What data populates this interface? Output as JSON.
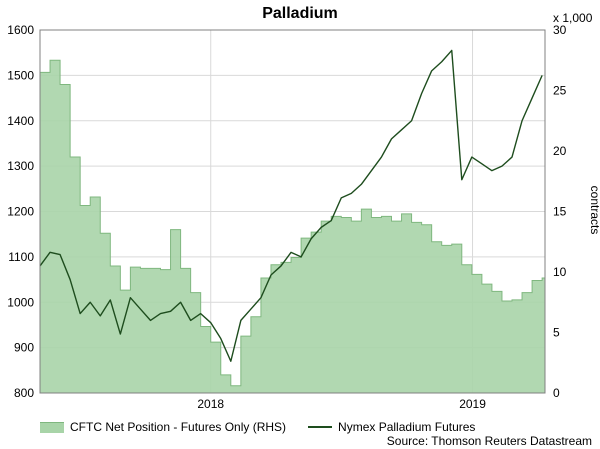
{
  "chart_data": {
    "type": "line",
    "title": "Palladium",
    "left_axis": {
      "ylim": [
        800,
        1600
      ],
      "ticks": [
        800,
        900,
        1000,
        1100,
        1200,
        1300,
        1400,
        1500,
        1600
      ]
    },
    "right_axis": {
      "ylim": [
        0,
        30
      ],
      "ticks": [
        0,
        5,
        10,
        15,
        20,
        25,
        30
      ],
      "unit_label": "x 1,000",
      "ylabel": "contracts"
    },
    "x_axis": {
      "xlim": [
        "2017-05-08",
        "2019-04-12"
      ],
      "tick_labels": [
        {
          "label": "2018",
          "date": "2018-01-01"
        },
        {
          "label": "2019",
          "date": "2019-01-01"
        }
      ]
    },
    "grid": true,
    "legend_position": "bottom",
    "series": [
      {
        "name": "CFTC Net Position - Futures Only (RHS)",
        "type": "area",
        "axis": "right",
        "color": "#a8d4a8",
        "x": [
          "2017-05-08",
          "2017-05-22",
          "2017-06-05",
          "2017-06-19",
          "2017-07-03",
          "2017-07-17",
          "2017-07-31",
          "2017-08-14",
          "2017-08-28",
          "2017-09-11",
          "2017-09-25",
          "2017-10-09",
          "2017-10-23",
          "2017-11-06",
          "2017-11-20",
          "2017-12-04",
          "2017-12-18",
          "2018-01-01",
          "2018-01-15",
          "2018-01-29",
          "2018-02-12",
          "2018-02-26",
          "2018-03-12",
          "2018-03-26",
          "2018-04-09",
          "2018-04-23",
          "2018-05-07",
          "2018-05-21",
          "2018-06-04",
          "2018-06-18",
          "2018-07-02",
          "2018-07-16",
          "2018-07-30",
          "2018-08-13",
          "2018-08-27",
          "2018-09-10",
          "2018-09-24",
          "2018-10-08",
          "2018-10-22",
          "2018-11-05",
          "2018-11-19",
          "2018-12-03",
          "2018-12-17",
          "2018-12-31",
          "2019-01-14",
          "2019-01-28",
          "2019-02-11",
          "2019-02-25",
          "2019-03-11",
          "2019-03-25",
          "2019-04-08"
        ],
        "values": [
          26.5,
          27.5,
          25.5,
          19.5,
          15.5,
          16.2,
          13.2,
          10.5,
          8.5,
          10.4,
          10.3,
          10.3,
          10.2,
          13.5,
          10.3,
          8.3,
          5.5,
          4.2,
          1.5,
          0.6,
          4.7,
          6.3,
          9.5,
          10.6,
          10.8,
          11.2,
          12.8,
          13.3,
          14.2,
          14.6,
          14.5,
          14.2,
          15.2,
          14.5,
          14.6,
          14.2,
          14.8,
          14.1,
          13.9,
          12.5,
          12.2,
          12.3,
          10.6,
          9.8,
          9.0,
          8.4,
          7.6,
          7.7,
          8.3,
          9.3,
          9.5
        ]
      },
      {
        "name": "Nymex Palladium Futures",
        "type": "line",
        "axis": "left",
        "color": "#1e4d1e",
        "x": [
          "2017-05-08",
          "2017-05-22",
          "2017-06-05",
          "2017-06-19",
          "2017-07-03",
          "2017-07-17",
          "2017-07-31",
          "2017-08-14",
          "2017-08-28",
          "2017-09-11",
          "2017-09-25",
          "2017-10-09",
          "2017-10-23",
          "2017-11-06",
          "2017-11-20",
          "2017-12-04",
          "2017-12-18",
          "2018-01-01",
          "2018-01-15",
          "2018-01-29",
          "2018-02-12",
          "2018-02-26",
          "2018-03-12",
          "2018-03-26",
          "2018-04-09",
          "2018-04-23",
          "2018-05-07",
          "2018-05-21",
          "2018-06-04",
          "2018-06-18",
          "2018-07-02",
          "2018-07-16",
          "2018-07-30",
          "2018-08-13",
          "2018-08-27",
          "2018-09-10",
          "2018-09-24",
          "2018-10-08",
          "2018-10-22",
          "2018-11-05",
          "2018-11-19",
          "2018-12-03",
          "2018-12-17",
          "2018-12-31",
          "2019-01-14",
          "2019-01-28",
          "2019-02-11",
          "2019-02-25",
          "2019-03-11",
          "2019-03-25",
          "2019-04-08"
        ],
        "values": [
          1080,
          1110,
          1105,
          1050,
          975,
          1000,
          970,
          1005,
          930,
          1010,
          985,
          960,
          975,
          980,
          1000,
          960,
          975,
          955,
          920,
          870,
          960,
          985,
          1010,
          1060,
          1080,
          1110,
          1100,
          1140,
          1165,
          1180,
          1230,
          1240,
          1260,
          1290,
          1320,
          1360,
          1380,
          1400,
          1460,
          1510,
          1530,
          1555,
          1270,
          1320,
          1305,
          1290,
          1300,
          1320,
          1400,
          1450,
          1500
        ]
      }
    ],
    "source": "Source: Thomson Reuters Datastream"
  }
}
